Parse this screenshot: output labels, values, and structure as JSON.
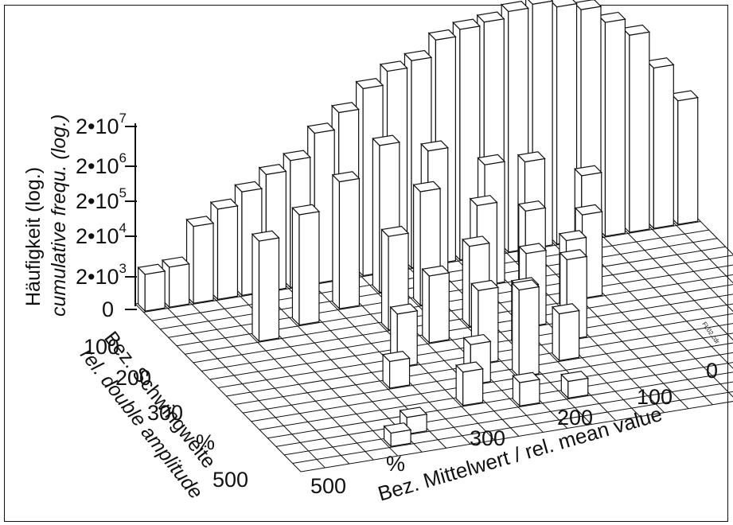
{
  "chart_data": {
    "type": "bar3d",
    "title": "",
    "zlabel_de": "Häufigkeit (log.)",
    "zlabel_en": "cumulative frequ. (log.)",
    "ylabel_de": "Bez. Schwingweite",
    "ylabel_en": "rel. double amplitude",
    "xlabel": "Bez. Mittelwert / rel. mean value",
    "z_ticks": [
      {
        "base": "2•10",
        "exp": "7"
      },
      {
        "base": "2•10",
        "exp": "6"
      },
      {
        "base": "2•10",
        "exp": "5"
      },
      {
        "base": "2•10",
        "exp": "4"
      },
      {
        "base": "2•10",
        "exp": "3"
      },
      {
        "base": "0",
        "exp": ""
      }
    ],
    "y_ticks": [
      "100",
      "200",
      "300",
      "%",
      "500"
    ],
    "x_ticks": [
      "0",
      "100",
      "200",
      "300",
      "%",
      "500"
    ],
    "file_tag": "FL02.cdr",
    "scale": "log",
    "back_row_heights": [
      1.1,
      1.2,
      2.3,
      2.7,
      3.1,
      3.5,
      3.8,
      4.5,
      5.0,
      5.6,
      6.0,
      6.2,
      6.7,
      6.9,
      7.0,
      7.2,
      7.3,
      7.1,
      6.9,
      6.4,
      5.9,
      4.8,
      3.7
    ],
    "interior_bars": [
      {
        "i": 3,
        "j": 5,
        "h": 3.0
      },
      {
        "i": 5,
        "j": 4,
        "h": 3.3
      },
      {
        "i": 7,
        "j": 3,
        "h": 3.8
      },
      {
        "i": 9,
        "j": 2,
        "h": 4.4
      },
      {
        "i": 11,
        "j": 2,
        "h": 4.0
      },
      {
        "i": 13,
        "j": 3,
        "h": 3.6
      },
      {
        "i": 15,
        "j": 2,
        "h": 3.2
      },
      {
        "i": 17,
        "j": 3,
        "h": 2.8
      },
      {
        "i": 10,
        "j": 4,
        "h": 3.4
      },
      {
        "i": 12,
        "j": 5,
        "h": 3.0
      },
      {
        "i": 14,
        "j": 5,
        "h": 2.6
      },
      {
        "i": 8,
        "j": 6,
        "h": 2.8
      },
      {
        "i": 11,
        "j": 7,
        "h": 2.4
      },
      {
        "i": 13,
        "j": 8,
        "h": 2.2
      },
      {
        "i": 9,
        "j": 8,
        "h": 2.0
      },
      {
        "i": 15,
        "j": 7,
        "h": 2.1
      },
      {
        "i": 12,
        "j": 10,
        "h": 1.8
      },
      {
        "i": 10,
        "j": 11,
        "h": 2.2
      },
      {
        "i": 14,
        "j": 10,
        "h": 2.4
      },
      {
        "i": 7,
        "j": 10,
        "h": 1.6
      },
      {
        "i": 11,
        "j": 13,
        "h": 2.6
      },
      {
        "i": 9,
        "j": 13,
        "h": 1.2
      },
      {
        "i": 13,
        "j": 12,
        "h": 1.4
      },
      {
        "i": 6,
        "j": 12,
        "h": 0.8
      },
      {
        "i": 8,
        "j": 15,
        "h": 1.0
      },
      {
        "i": 10,
        "j": 16,
        "h": 0.7
      },
      {
        "i": 12,
        "j": 16,
        "h": 0.5
      },
      {
        "i": 5,
        "j": 17,
        "h": 0.5
      },
      {
        "i": 4,
        "j": 18,
        "h": 0.4
      },
      {
        "i": 16,
        "j": 6,
        "h": 2.5
      }
    ]
  }
}
